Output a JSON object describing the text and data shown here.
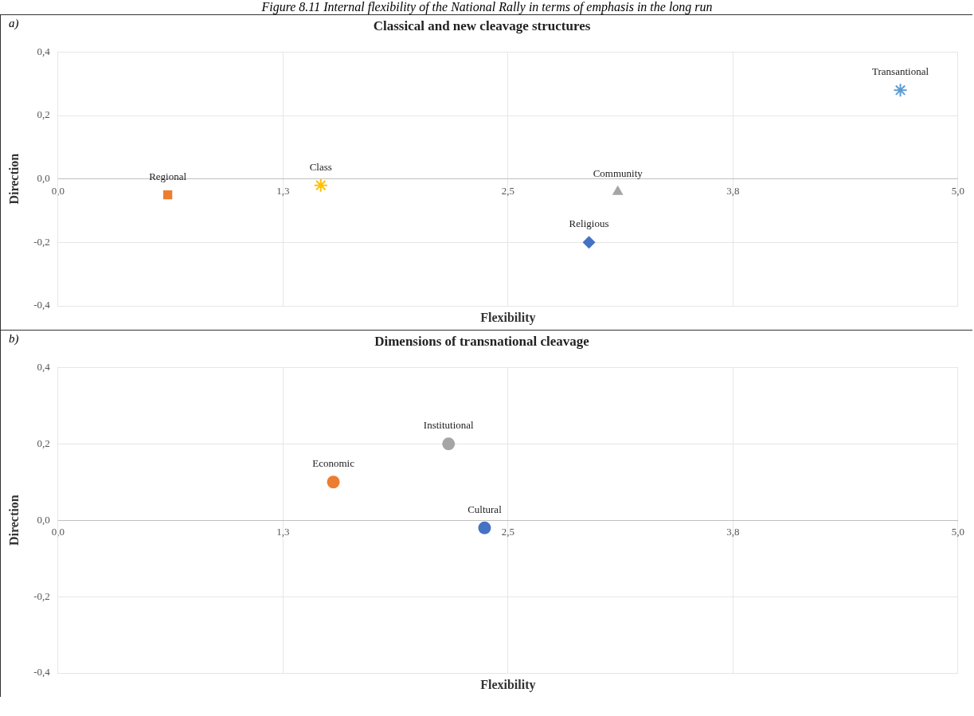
{
  "chart_data": [
    {
      "type": "scatter",
      "title": "Classical and new cleavage structures",
      "xlabel": "Flexibility",
      "ylabel": "Direction",
      "annotations": [
        "Figure 8.11 Internal flexibility of the National Rally in terms of emphasis in the long run",
        "a)"
      ],
      "xlim": [
        0,
        5
      ],
      "xticks": [
        {
          "value": 0,
          "label": "0,0"
        },
        {
          "value": 1.25,
          "label": "1,3"
        },
        {
          "value": 2.5,
          "label": "2,5"
        },
        {
          "value": 3.75,
          "label": "3,8"
        },
        {
          "value": 5,
          "label": "5,0"
        }
      ],
      "ylim": [
        -0.4,
        0.4
      ],
      "yticks": [
        {
          "value": -0.4,
          "label": "-0,4"
        },
        {
          "value": -0.2,
          "label": "-0,2"
        },
        {
          "value": 0,
          "label": "0,0"
        },
        {
          "value": 0.2,
          "label": "0,2"
        },
        {
          "value": 0.4,
          "label": "0,4"
        }
      ],
      "grid": true,
      "legend": false,
      "series": [
        {
          "name": "Regional",
          "color": "#ed7d31",
          "marker": "square",
          "x": [
            0.61
          ],
          "values": [
            -0.05
          ]
        },
        {
          "name": "Class",
          "color": "#ffc000",
          "marker": "cross",
          "x": [
            1.46
          ],
          "values": [
            -0.02
          ]
        },
        {
          "name": "Community",
          "color": "#a5a5a5",
          "marker": "triangle",
          "x": [
            3.11
          ],
          "values": [
            -0.04
          ]
        },
        {
          "name": "Religious",
          "color": "#4472c4",
          "marker": "diamond",
          "x": [
            2.95
          ],
          "values": [
            -0.2
          ]
        },
        {
          "name": "Transantional",
          "color": "#5b9bd5",
          "marker": "cross",
          "x": [
            4.68
          ],
          "values": [
            0.28
          ]
        }
      ]
    },
    {
      "type": "scatter",
      "title": "Dimensions of transnational cleavage",
      "xlabel": "Flexibility",
      "ylabel": "Direction",
      "annotations": [
        "b)"
      ],
      "xlim": [
        0,
        5
      ],
      "xticks": [
        {
          "value": 0,
          "label": "0,0"
        },
        {
          "value": 1.25,
          "label": "1,3"
        },
        {
          "value": 2.5,
          "label": "2,5"
        },
        {
          "value": 3.75,
          "label": "3,8"
        },
        {
          "value": 5,
          "label": "5,0"
        }
      ],
      "ylim": [
        -0.4,
        0.4
      ],
      "yticks": [
        {
          "value": -0.4,
          "label": "-0,4"
        },
        {
          "value": -0.2,
          "label": "-0,2"
        },
        {
          "value": 0,
          "label": "0,0"
        },
        {
          "value": 0.2,
          "label": "0,2"
        },
        {
          "value": 0.4,
          "label": "0,4"
        }
      ],
      "grid": true,
      "legend": false,
      "series": [
        {
          "name": "Economic",
          "color": "#ed7d31",
          "marker": "circle",
          "x": [
            1.53
          ],
          "values": [
            0.1
          ]
        },
        {
          "name": "Institutional",
          "color": "#a5a5a5",
          "marker": "circle",
          "x": [
            2.17
          ],
          "values": [
            0.2
          ]
        },
        {
          "name": "Cultural",
          "color": "#4472c4",
          "marker": "circle",
          "x": [
            2.37
          ],
          "values": [
            -0.02
          ]
        }
      ]
    }
  ]
}
